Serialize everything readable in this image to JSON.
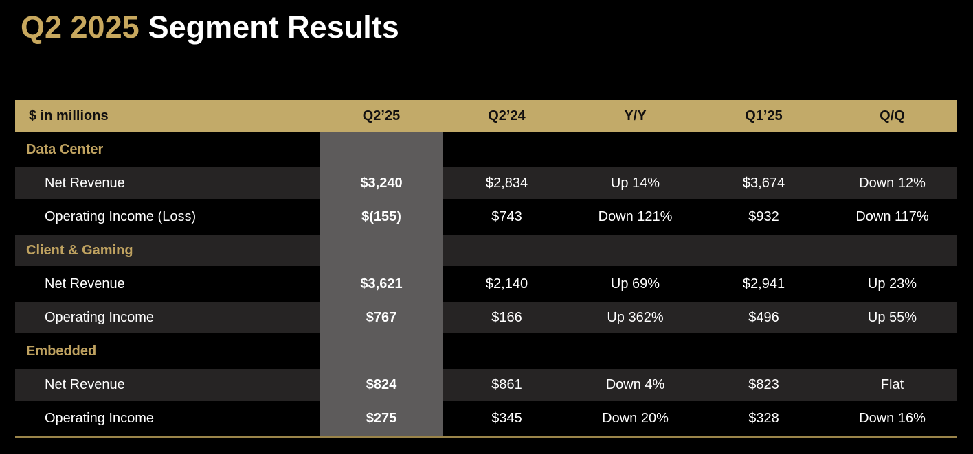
{
  "title": {
    "highlight": "Q2 2025",
    "rest": "Segment Results"
  },
  "table": {
    "unit_label": "$ in millions",
    "columns": [
      "Q2’25",
      "Q2’24",
      "Y/Y",
      "Q1’25",
      "Q/Q"
    ],
    "highlighted_column": "Q2’25",
    "sections": [
      {
        "name": "Data Center",
        "rows": [
          {
            "label": "Net Revenue",
            "values": [
              "$3,240",
              "$2,834",
              "Up 14%",
              "$3,674",
              "Down 12%"
            ]
          },
          {
            "label": "Operating Income (Loss)",
            "values": [
              "$(155)",
              "$743",
              "Down 121%",
              "$932",
              "Down 117%"
            ]
          }
        ]
      },
      {
        "name": "Client & Gaming",
        "rows": [
          {
            "label": "Net Revenue",
            "values": [
              "$3,621",
              "$2,140",
              "Up 69%",
              "$2,941",
              "Up 23%"
            ]
          },
          {
            "label": "Operating Income",
            "values": [
              "$767",
              "$166",
              "Up 362%",
              "$496",
              "Up 55%"
            ]
          }
        ]
      },
      {
        "name": "Embedded",
        "rows": [
          {
            "label": "Net Revenue",
            "values": [
              "$824",
              "$861",
              "Down 4%",
              "$823",
              "Flat"
            ]
          },
          {
            "label": "Operating Income",
            "values": [
              "$275",
              "$345",
              "Down 20%",
              "$328",
              "Down 16%"
            ]
          }
        ]
      }
    ]
  },
  "colors": {
    "background": "#000000",
    "header_bar_gold": "#C2AA69",
    "title_gold": "#C8A85E",
    "section_label_gold": "#BFA260",
    "row_alt_dark": "#262424",
    "highlight_column_gray": "#5D5B5B",
    "bottom_rule_gold": "#9A844A",
    "text_white": "#FFFFFF",
    "header_text_black": "#121010"
  }
}
